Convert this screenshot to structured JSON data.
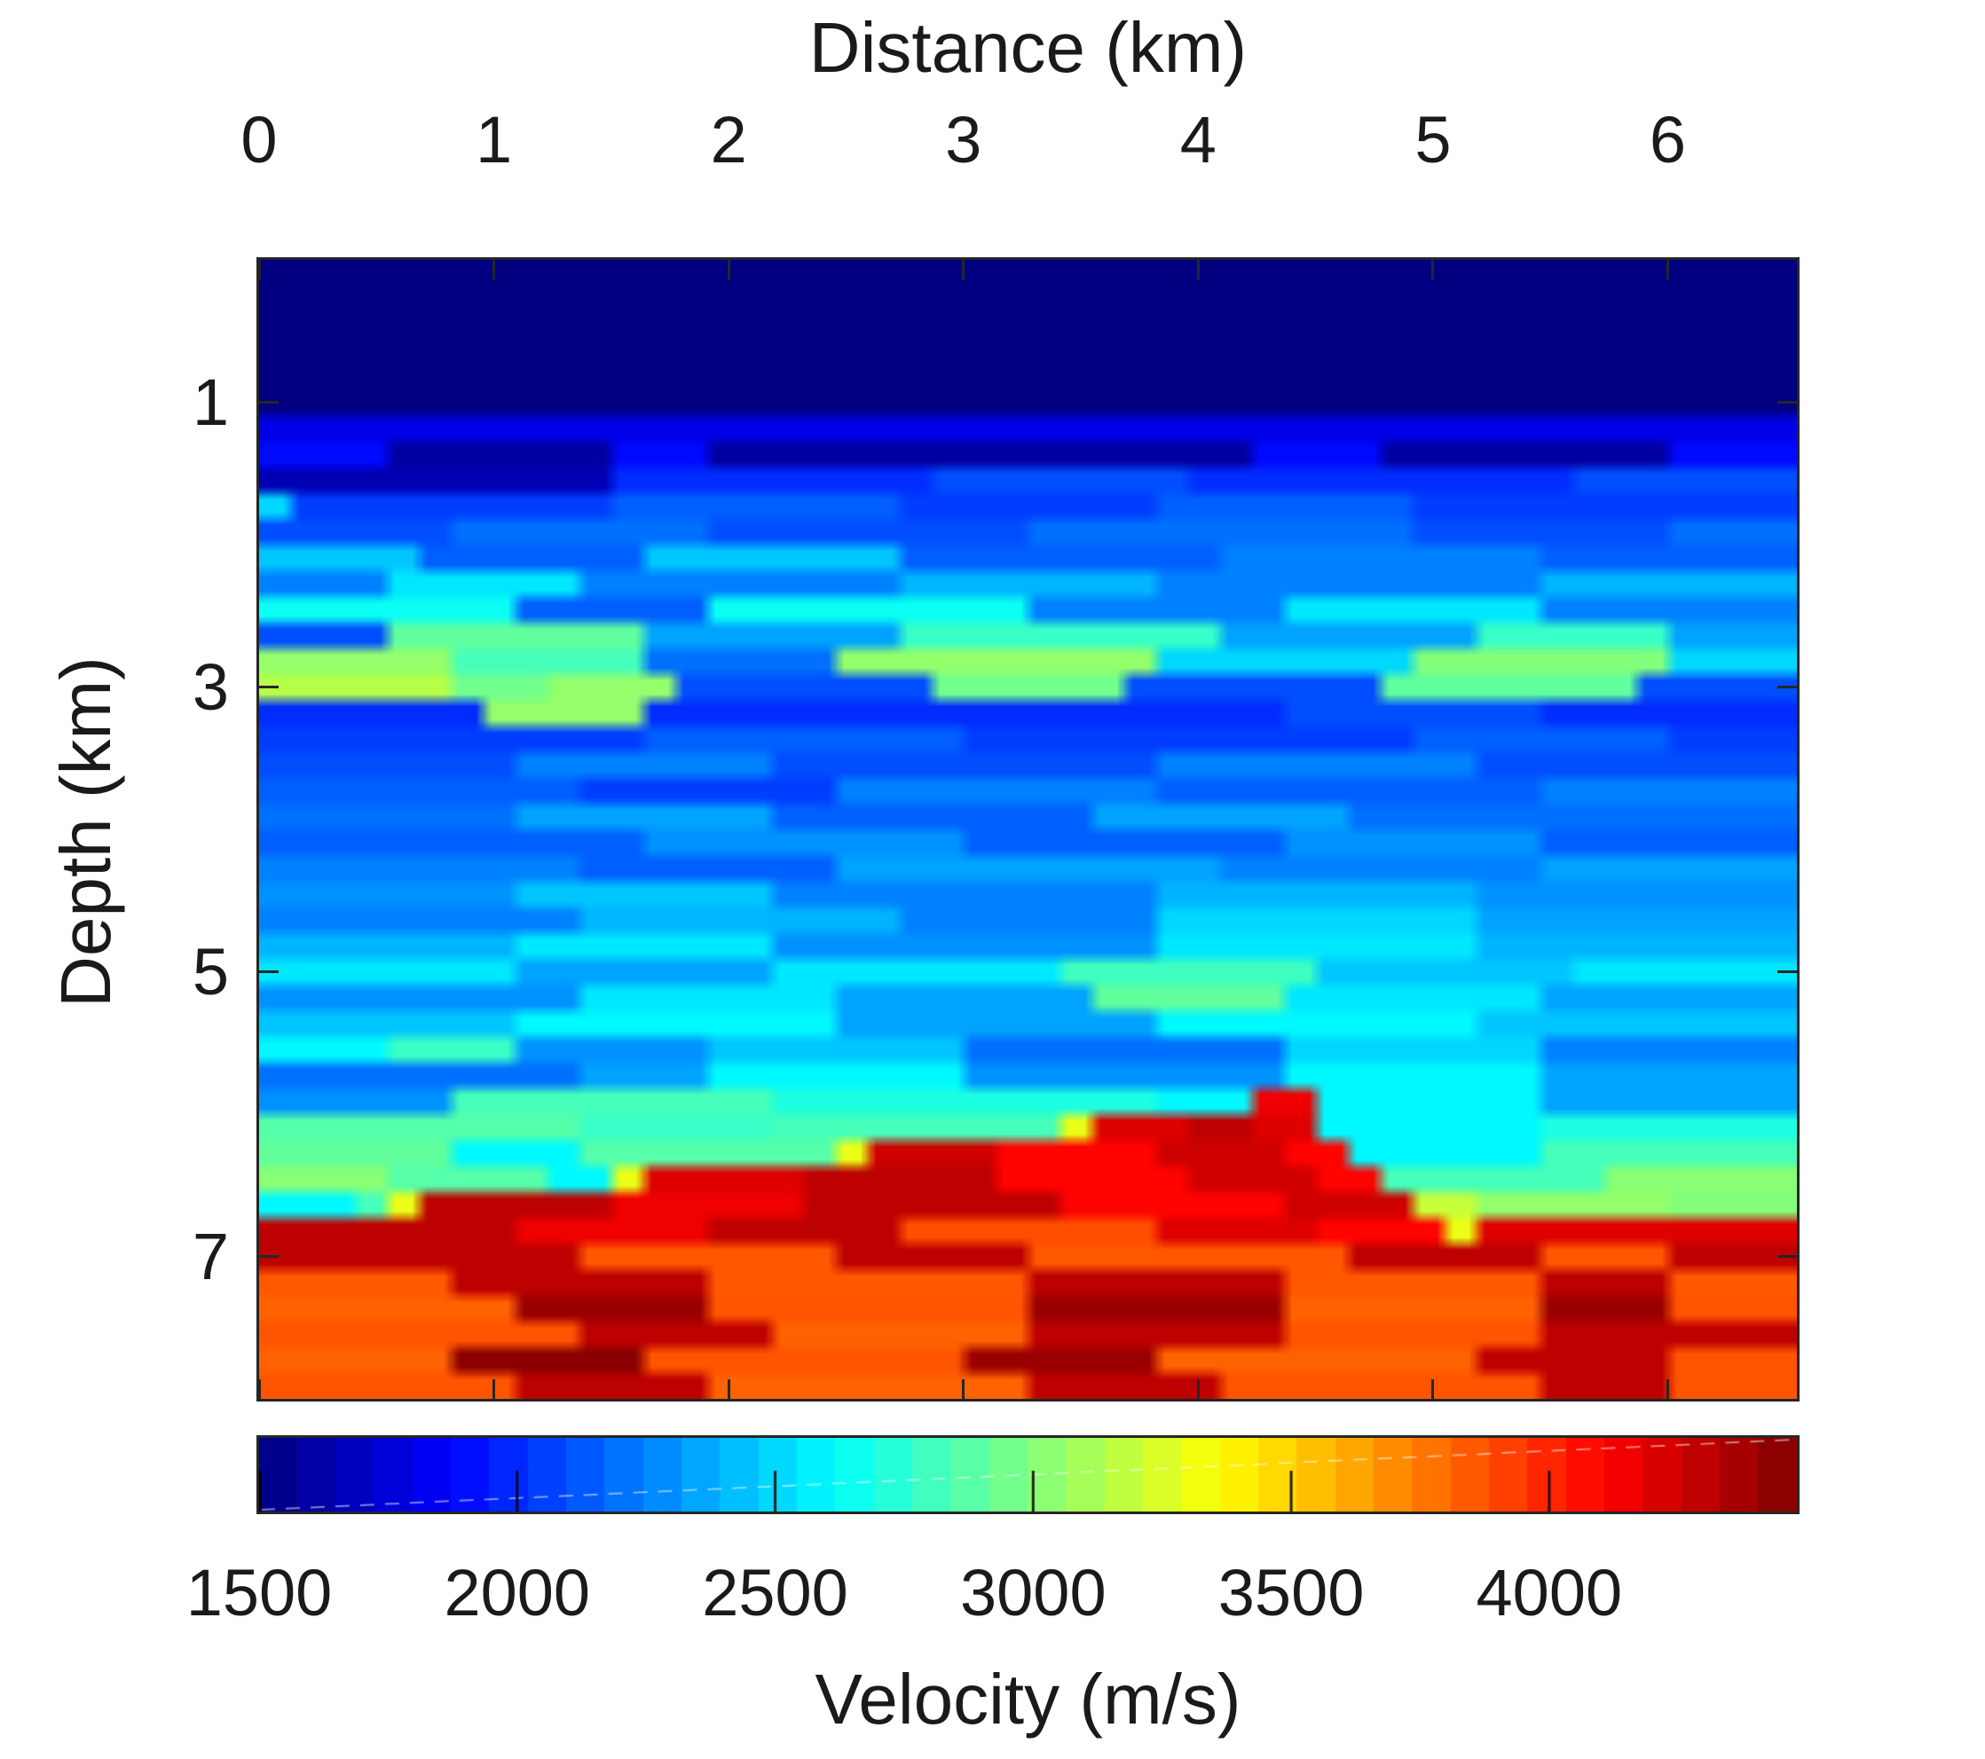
{
  "figure": {
    "x_axis_title": "Distance (km)",
    "y_axis_title": "Depth (km)",
    "colorbar_title": "Velocity (m/s)"
  },
  "axes": {
    "x_ticks": [
      0,
      1,
      2,
      3,
      4,
      5,
      6
    ],
    "y_ticks": [
      1,
      3,
      5,
      7
    ],
    "x_range": [
      0,
      6.55
    ],
    "y_range": [
      0,
      8.0
    ],
    "axis_color": "#262626",
    "background": "#ffffff"
  },
  "colorbar": {
    "label": "Velocity (m/s)",
    "ticks": [
      1500,
      2000,
      2500,
      3000,
      3500,
      4000
    ],
    "vmin": 1500,
    "vmax": 4480,
    "steps": 40,
    "orientation": "horizontal",
    "colormap": "jet"
  },
  "chart_data": {
    "type": "heatmap",
    "xlabel": "Distance (km)",
    "ylabel": "Depth (km)",
    "value_label": "Velocity (m/s)",
    "colormap": "jet",
    "x_range": [
      0,
      6.55
    ],
    "depth_range": [
      0,
      8.0
    ],
    "value_range": [
      1500,
      4480
    ],
    "ncols": 48,
    "nrows": 44,
    "features": [
      "0-1 km uniform 1500 m/s water layer",
      "1-1.6 km blue layers with dark low-velocity dashed streaks near 1.4 km",
      "1.6-3.1 km laminated sediments 2000-3100 m/s with green-yellow streaks and a yellow pocket at x 1-1.6 km near 3 km depth",
      "3-5.5 km royal-blue laminated zone 2000-2600 m/s",
      "5.5-6.8 km cyan-green wedge 2600-3100 m/s",
      "basement 3800-4480 m/s with apex at x 4.3 km, depth 5.9 km, orange body with dark-red lenses"
    ],
    "rows_rle": [
      "1500x48",
      "1500x48",
      "1500x48",
      "1500x48",
      "1500x48",
      "1500x48",
      "1800x48",
      "1900x4,1600x7,1900x3,1600x17,1900x4,1600x9,1900x4",
      "1650x11,2000x10,2100x8,2000x12,2100x7",
      "2500x1,2050x10,2150x9,2050x8,2150x8,2050x12",
      "2100x6,2200x8,2100x10,2200x12,2100x8,2200x4",
      "2450x5,2150x7,2450x8,2150x10,2250x10,2150x8",
      "2250x4,2550x6,2250x10,2400x8,2250x12,2400x8",
      "2650x8,2150x6,2650x10,2250x8,2550x8,2250x8",
      "2100x4,2900x8,2350x8,2780x10,2350x8,2780x6,2350x4",
      "3050x6,2820x6,2200x6,3050x10,2500x8,3000x8,2500x4",
      "3150x6,2950x3,3050x4,2100x8,2950x6,2100x8,2900x8,2100x5",
      "2000x7,3050x5,2000x20,2100x8,2000x8",
      "2050x12,2150x10,2050x14,2150x8,2050x4",
      "2100x8,2250x8,2100x12,2250x10,2100x10",
      "2150x10,2050x8,2250x10,2150x12,2250x8",
      "2200x8,2350x8,2150x10,2350x8,2200x14",
      "2150x12,2300x10,2150x10,2300x8,2150x8",
      "2250x10,2150x8,2350x12,2250x10,2350x8",
      "2300x8,2450x8,2250x12,2400x10,2300x10",
      "2250x10,2400x10,2250x8,2500x10,2350x10",
      "2400x8,2550x8,2300x12,2550x10,2400x10",
      "2550x8,2350x8,2550x9,2800x8,2450x8,2550x7",
      "2300x10,2550x8,2350x8,2900x6,2550x8,2350x8",
      "2450x8,2600x10,2350x10,2600x10,2450x10",
      "2600x4,2780x4,2300x6,2450x8,2200x10,2500x8,2250x8",
      "2200x10,2350x4,2600x8,2300x10,2600x8,2350x8",
      "2300x6,2820x10,2700x12,2600x3,4150x2,2600x7,2350x8",
      "2870x10,2780x6,2820x9,3300x1,4200x3,4300x2,4200x2,2600x7,2700x8",
      "2900x6,2600x4,2870x8,3300x1,4250x4,4100x5,4250x4,4100x2,2600x6,2820x8",
      "3020x4,2870x5,2600x2,3300x1,4200x5,4300x6,4100x6,4250x4,4100x2,2820x7,3020x6",
      "2600x3,2820x1,3300x1,4300x6,4150x6,4300x8,4100x7,4250x4,3200x2,3050x6,3000x4",
      "4300x8,4150x6,4300x6,3880x8,4200x5,4100x4,3300x1,4200x10",
      "4300x10,3850x8,4300x6,3850x10,4300x6,3850x4,4300x4",
      "3850x6,4300x8,3850x10,4300x8,3850x8,4300x4,3850x4",
      "3820x8,4400x6,3860x10,4400x8,3820x8,4400x4,3860x4",
      "3860x10,4300x6,3820x8,4300x8,3860x8,4300x8",
      "3820x6,4450x6,3860x10,4400x6,3820x10,4300x6,3860x4",
      "3860x8,4300x6,3820x10,4300x6,3860x10,4300x4,3860x4"
    ]
  }
}
